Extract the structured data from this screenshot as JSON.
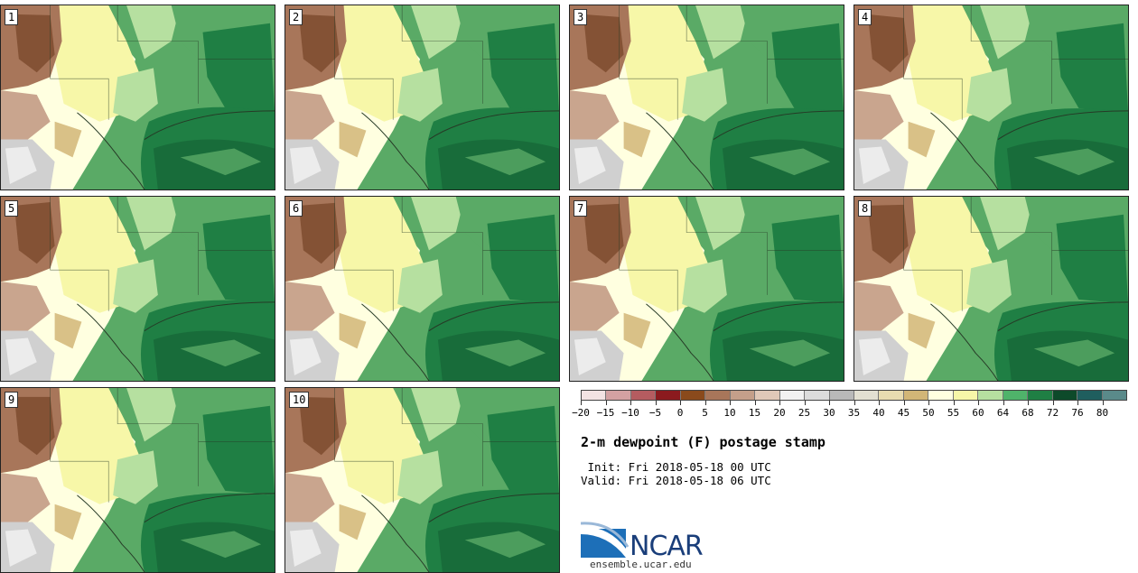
{
  "panels": [
    {
      "label": "1"
    },
    {
      "label": "2"
    },
    {
      "label": "3"
    },
    {
      "label": "4"
    },
    {
      "label": "5"
    },
    {
      "label": "6"
    },
    {
      "label": "7"
    },
    {
      "label": "8"
    },
    {
      "label": "9"
    },
    {
      "label": "10"
    }
  ],
  "colorbar": {
    "colors": [
      "#f3e3e3",
      "#d3a1a2",
      "#b55c60",
      "#8b1a1e",
      "#8a4a1c",
      "#a8765a",
      "#c49f8a",
      "#e0c8b8",
      "#f2f2f2",
      "#dcdcdc",
      "#b9b9b9",
      "#e3e0d2",
      "#e8dcb0",
      "#d2b677",
      "#ffffe0",
      "#f7f7a8",
      "#b6e0a0",
      "#4fb36a",
      "#1f7f44",
      "#0d4a2a",
      "#1f5e5e",
      "#5a8a8a"
    ],
    "tick_labels": [
      "−20",
      "−15",
      "−10",
      "−5",
      "0",
      "5",
      "10",
      "15",
      "20",
      "25",
      "30",
      "35",
      "40",
      "45",
      "50",
      "55",
      "60",
      "64",
      "68",
      "72",
      "76",
      "80"
    ]
  },
  "title": "2-m dewpoint (F) postage stamp",
  "init_line": " Init: Fri 2018-05-18 00 UTC",
  "valid_line": "Valid: Fri 2018-05-18 06 UTC",
  "logo_text": "NCAR",
  "url": "ensemble.ucar.edu",
  "map_colors": {
    "base": "#5aaa66",
    "dark_green": "#1f7f44",
    "light_green": "#b6e0a0",
    "pale_yellow": "#f7f7a8",
    "cream": "#ffffe0",
    "tan": "#d2b677",
    "brown": "#a8765a",
    "dark_brown": "#7a4a2c",
    "gray": "#d0d0d0",
    "light_gray": "#ececec"
  }
}
